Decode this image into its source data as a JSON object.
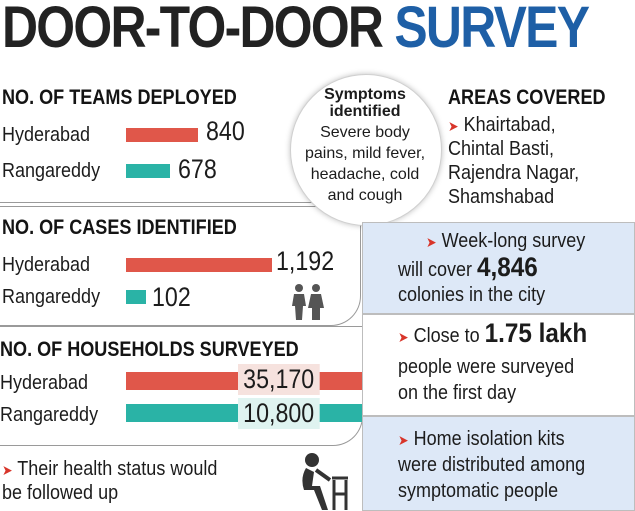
{
  "title": {
    "part1": "DOOR-TO-DOOR",
    "part2": "SURVEY"
  },
  "colors": {
    "red_bar": "#e0574a",
    "teal_bar": "#2ab3a6",
    "title_blue": "#1e5fa6",
    "box_blue": "#dde8f7"
  },
  "teams": {
    "heading": "NO. OF TEAMS DEPLOYED",
    "rows": [
      {
        "label": "Hyderabad",
        "value": "840"
      },
      {
        "label": "Rangareddy",
        "value": "678"
      }
    ]
  },
  "cases": {
    "heading": "NO. OF CASES IDENTIFIED",
    "rows": [
      {
        "label": "Hyderabad",
        "value": "1,192"
      },
      {
        "label": "Rangareddy",
        "value": "102"
      }
    ],
    "icon": "two-people-icon"
  },
  "households": {
    "heading": "NO. OF HOUSEHOLDS SURVEYED",
    "rows": [
      {
        "label": "Hyderabad",
        "value": "35,170"
      },
      {
        "label": "Rangareddy",
        "value": "10,800"
      }
    ]
  },
  "health": {
    "arrow": "➤",
    "line1": "Their health status would",
    "line2": "be followed up",
    "icon": "seated-sick-person-icon"
  },
  "symptoms": {
    "title_line1": "Symptoms",
    "title_line2": "identified",
    "lines": [
      "Severe body",
      "pains, mild fever,",
      "headache, cold",
      "and cough"
    ]
  },
  "areas": {
    "heading": "AREAS COVERED",
    "arrow": "➤",
    "lines": [
      "Khairtabad,",
      "Chintal Basti,",
      "Rajendra Nagar,",
      "Shamshabad"
    ]
  },
  "facts": [
    {
      "arrow": "➤",
      "pre": "Week-long survey",
      "line2_pre": "will cover ",
      "highlight": "4,846",
      "line3": "colonies in the city"
    },
    {
      "arrow": "➤",
      "pre": "Close to ",
      "highlight": "1.75 lakh",
      "line2": "people were surveyed",
      "line3": "on the first day"
    },
    {
      "arrow": "➤",
      "line1": "Home isolation kits",
      "line2": "were distributed among",
      "line3": "symptomatic people"
    }
  ]
}
